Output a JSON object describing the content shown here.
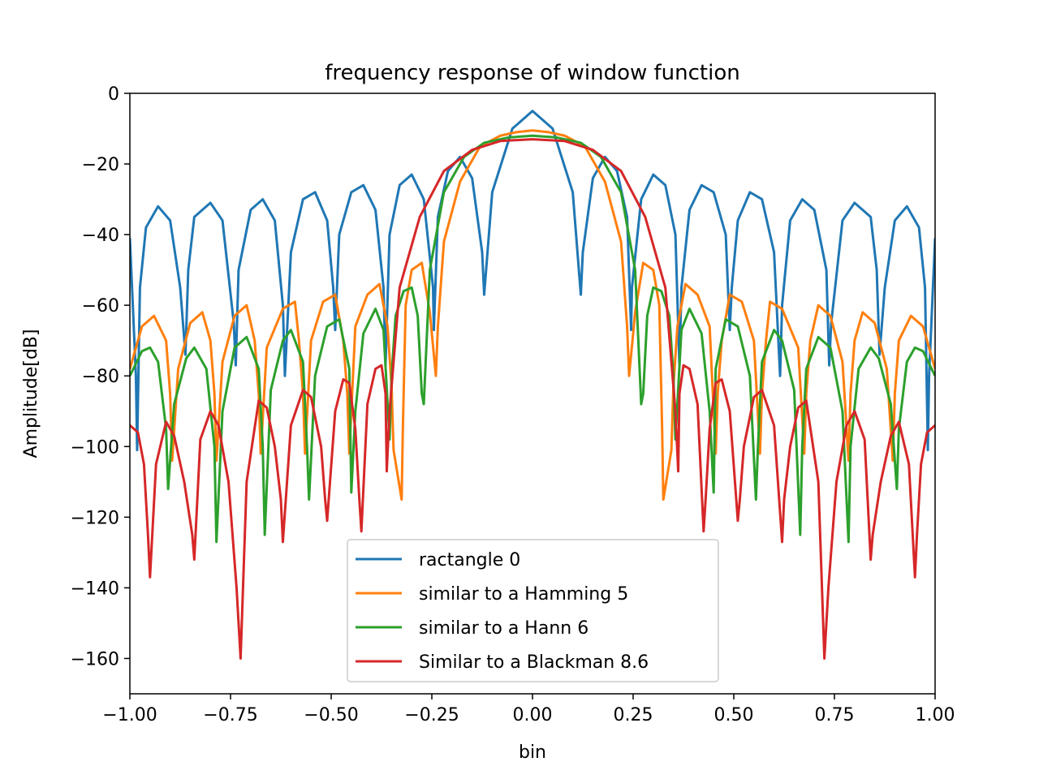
{
  "chart_data": {
    "type": "line",
    "title": "frequency response of window function",
    "xlabel": "bin",
    "ylabel": "Amplitude[dB]",
    "xlim": [
      -1.0,
      1.0
    ],
    "ylim": [
      -170,
      0
    ],
    "xticks": [
      -1.0,
      -0.75,
      -0.5,
      -0.25,
      0.0,
      0.25,
      0.5,
      0.75,
      1.0
    ],
    "xtick_labels": [
      "−1.00",
      "−0.75",
      "−0.50",
      "−0.25",
      "0.00",
      "0.25",
      "0.50",
      "0.75",
      "1.00"
    ],
    "yticks": [
      0,
      -20,
      -40,
      -60,
      -80,
      -100,
      -120,
      -140,
      -160
    ],
    "ytick_labels": [
      "0",
      "−20",
      "−40",
      "−60",
      "−80",
      "−100",
      "−120",
      "−140",
      "−160"
    ],
    "grid": false,
    "legend_position": "bottom-center",
    "series": [
      {
        "name": "ractangle 0",
        "color": "#1f77b4",
        "x": [
          -1.0,
          -0.985,
          -0.982,
          -0.975,
          -0.96,
          -0.93,
          -0.9,
          -0.875,
          -0.862,
          -0.855,
          -0.84,
          -0.8,
          -0.77,
          -0.742,
          -0.737,
          -0.73,
          -0.7,
          -0.67,
          -0.64,
          -0.62,
          -0.615,
          -0.6,
          -0.57,
          -0.54,
          -0.51,
          -0.495,
          -0.49,
          -0.48,
          -0.45,
          -0.42,
          -0.39,
          -0.37,
          -0.365,
          -0.355,
          -0.33,
          -0.3,
          -0.27,
          -0.247,
          -0.245,
          -0.235,
          -0.21,
          -0.18,
          -0.15,
          -0.125,
          -0.12,
          -0.1,
          -0.05,
          0.0,
          0.05,
          0.1,
          0.12,
          0.125,
          0.15,
          0.18,
          0.21,
          0.235,
          0.245,
          0.247,
          0.27,
          0.3,
          0.33,
          0.355,
          0.365,
          0.37,
          0.39,
          0.42,
          0.45,
          0.48,
          0.49,
          0.495,
          0.51,
          0.54,
          0.57,
          0.6,
          0.615,
          0.62,
          0.64,
          0.67,
          0.7,
          0.73,
          0.737,
          0.742,
          0.77,
          0.8,
          0.84,
          0.855,
          0.862,
          0.875,
          0.9,
          0.93,
          0.96,
          0.975,
          0.982,
          0.985,
          1.0
        ],
        "y": [
          -41,
          -80,
          -101,
          -55,
          -38,
          -32,
          -36,
          -55,
          -74,
          -50,
          -35,
          -31,
          -36,
          -65,
          -77,
          -50,
          -33,
          -30,
          -36,
          -60,
          -80,
          -45,
          -30,
          -28,
          -36,
          -55,
          -67,
          -40,
          -28,
          -26,
          -33,
          -55,
          -77,
          -40,
          -26,
          -23,
          -30,
          -55,
          -67,
          -35,
          -22,
          -18,
          -24,
          -45,
          -57,
          -28,
          -10,
          -5,
          -10,
          -28,
          -57,
          -45,
          -24,
          -18,
          -22,
          -35,
          -67,
          -55,
          -30,
          -23,
          -26,
          -40,
          -77,
          -55,
          -33,
          -26,
          -28,
          -40,
          -67,
          -55,
          -36,
          -28,
          -30,
          -45,
          -80,
          -60,
          -36,
          -30,
          -33,
          -50,
          -77,
          -65,
          -36,
          -31,
          -35,
          -50,
          -74,
          -55,
          -36,
          -32,
          -38,
          -55,
          -101,
          -80,
          -41
        ]
      },
      {
        "name": "similar to a Hamming 5",
        "color": "#ff7f0e",
        "x": [
          -1.0,
          -0.97,
          -0.94,
          -0.91,
          -0.9,
          -0.895,
          -0.88,
          -0.85,
          -0.82,
          -0.8,
          -0.79,
          -0.785,
          -0.77,
          -0.74,
          -0.71,
          -0.69,
          -0.68,
          -0.675,
          -0.66,
          -0.62,
          -0.59,
          -0.58,
          -0.57,
          -0.565,
          -0.55,
          -0.52,
          -0.49,
          -0.47,
          -0.46,
          -0.455,
          -0.44,
          -0.41,
          -0.38,
          -0.36,
          -0.35,
          -0.345,
          -0.325,
          -0.322,
          -0.315,
          -0.3,
          -0.275,
          -0.255,
          -0.24,
          -0.235,
          -0.22,
          -0.18,
          -0.13,
          -0.08,
          -0.04,
          0.0,
          0.04,
          0.08,
          0.13,
          0.18,
          0.22,
          0.235,
          0.24,
          0.255,
          0.275,
          0.3,
          0.315,
          0.322,
          0.325,
          0.345,
          0.35,
          0.36,
          0.38,
          0.41,
          0.44,
          0.455,
          0.46,
          0.47,
          0.49,
          0.52,
          0.55,
          0.565,
          0.57,
          0.58,
          0.59,
          0.62,
          0.66,
          0.675,
          0.68,
          0.69,
          0.71,
          0.74,
          0.77,
          0.785,
          0.79,
          0.8,
          0.82,
          0.85,
          0.88,
          0.895,
          0.9,
          0.91,
          0.94,
          0.97,
          1.0
        ],
        "y": [
          -78,
          -66,
          -63,
          -70,
          -85,
          -104,
          -78,
          -65,
          -62,
          -70,
          -85,
          -104,
          -76,
          -63,
          -60,
          -70,
          -85,
          -102,
          -72,
          -61,
          -59,
          -70,
          -85,
          -102,
          -70,
          -59,
          -57,
          -70,
          -85,
          -102,
          -66,
          -57,
          -54,
          -66,
          -83,
          -101,
          -115,
          -95,
          -60,
          -50,
          -48,
          -62,
          -80,
          -66,
          -42,
          -25,
          -15,
          -12,
          -11,
          -10.5,
          -11,
          -12,
          -15,
          -25,
          -42,
          -66,
          -80,
          -62,
          -48,
          -50,
          -60,
          -95,
          -115,
          -101,
          -83,
          -66,
          -54,
          -57,
          -66,
          -102,
          -85,
          -70,
          -57,
          -59,
          -70,
          -102,
          -85,
          -70,
          -59,
          -61,
          -72,
          -102,
          -85,
          -70,
          -60,
          -63,
          -76,
          -104,
          -85,
          -70,
          -62,
          -65,
          -78,
          -104,
          -85,
          -70,
          -63,
          -66,
          -78
        ]
      },
      {
        "name": "similar to a Hann 6",
        "color": "#2ca02c",
        "x": [
          -1.0,
          -0.97,
          -0.95,
          -0.93,
          -0.91,
          -0.905,
          -0.89,
          -0.86,
          -0.84,
          -0.81,
          -0.79,
          -0.785,
          -0.77,
          -0.74,
          -0.71,
          -0.68,
          -0.67,
          -0.665,
          -0.65,
          -0.62,
          -0.6,
          -0.57,
          -0.56,
          -0.555,
          -0.54,
          -0.51,
          -0.48,
          -0.455,
          -0.45,
          -0.44,
          -0.42,
          -0.39,
          -0.37,
          -0.355,
          -0.35,
          -0.34,
          -0.32,
          -0.3,
          -0.285,
          -0.275,
          -0.27,
          -0.255,
          -0.22,
          -0.17,
          -0.12,
          -0.06,
          0.0,
          0.06,
          0.12,
          0.17,
          0.22,
          0.255,
          0.27,
          0.275,
          0.285,
          0.3,
          0.32,
          0.34,
          0.35,
          0.355,
          0.37,
          0.39,
          0.42,
          0.44,
          0.45,
          0.455,
          0.48,
          0.51,
          0.54,
          0.555,
          0.56,
          0.57,
          0.6,
          0.62,
          0.65,
          0.665,
          0.67,
          0.68,
          0.71,
          0.74,
          0.77,
          0.785,
          0.79,
          0.81,
          0.84,
          0.86,
          0.89,
          0.905,
          0.91,
          0.93,
          0.95,
          0.97,
          1.0
        ],
        "y": [
          -80,
          -73,
          -72,
          -76,
          -95,
          -112,
          -88,
          -75,
          -72,
          -78,
          -100,
          -127,
          -90,
          -72,
          -69,
          -78,
          -100,
          -125,
          -84,
          -70,
          -67,
          -76,
          -100,
          -115,
          -80,
          -66,
          -64,
          -78,
          -113,
          -90,
          -68,
          -61,
          -67,
          -98,
          -80,
          -63,
          -56,
          -55,
          -63,
          -85,
          -88,
          -50,
          -28,
          -18,
          -14,
          -12.5,
          -12,
          -12.5,
          -14,
          -18,
          -28,
          -50,
          -88,
          -85,
          -63,
          -55,
          -56,
          -63,
          -80,
          -98,
          -67,
          -61,
          -68,
          -90,
          -113,
          -78,
          -64,
          -66,
          -80,
          -115,
          -100,
          -76,
          -67,
          -70,
          -84,
          -125,
          -100,
          -78,
          -69,
          -72,
          -90,
          -127,
          -100,
          -78,
          -72,
          -75,
          -88,
          -112,
          -95,
          -76,
          -72,
          -73,
          -80
        ]
      },
      {
        "name": "Similar to a Blackman 8.6",
        "color": "#d62728",
        "x": [
          -1.0,
          -0.98,
          -0.965,
          -0.955,
          -0.95,
          -0.935,
          -0.91,
          -0.89,
          -0.865,
          -0.845,
          -0.84,
          -0.825,
          -0.8,
          -0.78,
          -0.755,
          -0.735,
          -0.725,
          -0.71,
          -0.68,
          -0.66,
          -0.64,
          -0.625,
          -0.62,
          -0.6,
          -0.57,
          -0.55,
          -0.525,
          -0.515,
          -0.51,
          -0.49,
          -0.47,
          -0.455,
          -0.44,
          -0.43,
          -0.425,
          -0.41,
          -0.39,
          -0.375,
          -0.365,
          -0.362,
          -0.355,
          -0.33,
          -0.28,
          -0.22,
          -0.15,
          -0.08,
          0.0,
          0.08,
          0.15,
          0.22,
          0.28,
          0.33,
          0.355,
          0.362,
          0.365,
          0.375,
          0.39,
          0.41,
          0.425,
          0.43,
          0.44,
          0.455,
          0.47,
          0.49,
          0.51,
          0.515,
          0.525,
          0.55,
          0.57,
          0.6,
          0.62,
          0.625,
          0.64,
          0.66,
          0.68,
          0.71,
          0.725,
          0.735,
          0.755,
          0.78,
          0.8,
          0.825,
          0.84,
          0.845,
          0.865,
          0.89,
          0.91,
          0.935,
          0.95,
          0.955,
          0.965,
          0.98,
          1.0
        ],
        "y": [
          -94,
          -96,
          -105,
          -125,
          -137,
          -105,
          -93,
          -97,
          -110,
          -125,
          -132,
          -98,
          -90,
          -94,
          -110,
          -140,
          -160,
          -110,
          -87,
          -89,
          -100,
          -115,
          -127,
          -94,
          -84,
          -86,
          -100,
          -115,
          -121,
          -90,
          -81,
          -82,
          -95,
          -115,
          -124,
          -88,
          -78,
          -77,
          -85,
          -107,
          -90,
          -55,
          -35,
          -22,
          -16,
          -13.5,
          -13,
          -13.5,
          -16,
          -22,
          -35,
          -55,
          -90,
          -107,
          -85,
          -77,
          -78,
          -88,
          -124,
          -115,
          -95,
          -82,
          -81,
          -90,
          -121,
          -115,
          -100,
          -86,
          -84,
          -94,
          -127,
          -115,
          -100,
          -89,
          -87,
          -110,
          -160,
          -140,
          -110,
          -94,
          -90,
          -98,
          -132,
          -125,
          -110,
          -97,
          -93,
          -105,
          -137,
          -125,
          -105,
          -96,
          -94
        ]
      }
    ]
  }
}
